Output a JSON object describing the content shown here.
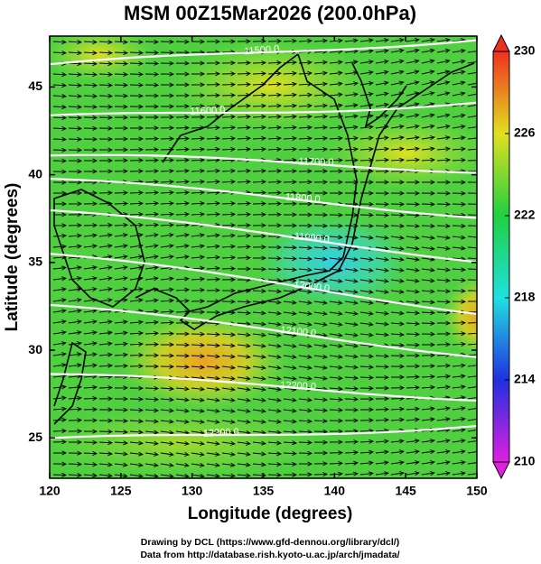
{
  "title": "MSM 00Z15Mar2026 (200.0hPa)",
  "x_axis": {
    "label": "Longitude (degrees)",
    "lim": [
      120,
      150
    ],
    "ticks": [
      120,
      125,
      130,
      135,
      140,
      145,
      150
    ]
  },
  "y_axis": {
    "label": "Latitude  (degrees)",
    "lim": [
      22.7,
      47.9
    ],
    "ticks": [
      25,
      30,
      35,
      40,
      45
    ]
  },
  "colorbar": {
    "lim": [
      210,
      230
    ],
    "ticks": [
      210,
      214,
      218,
      222,
      226,
      230
    ],
    "colors": [
      "#e020e0",
      "#2030e0",
      "#20e0e0",
      "#20d040",
      "#e0e020",
      "#f03020"
    ]
  },
  "contour_labels": [
    "11500.0",
    "11600.0",
    "11700.0",
    "11800.0",
    "11900.0",
    "12000.0",
    "12100.0",
    "12200.0",
    "12300.0"
  ],
  "credits": [
    "Drawing by DCL (https://www.gfd-dennou.org/library/dcl/)",
    "Data from http://database.rish.kyoto-u.ac.jp/arch/jmadata/"
  ]
}
